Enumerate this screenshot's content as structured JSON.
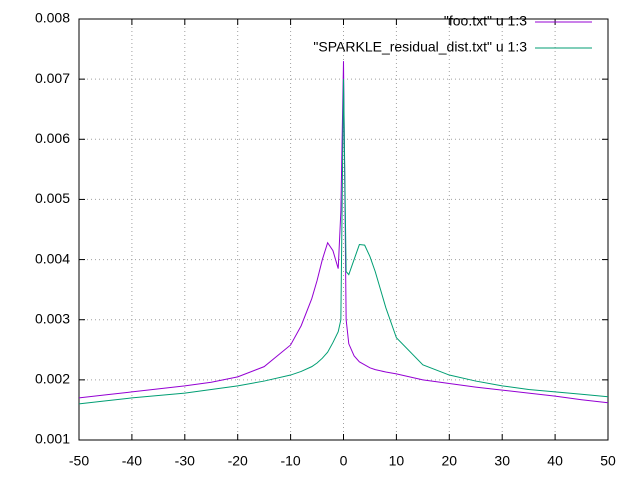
{
  "chart_data": {
    "type": "line",
    "x": [
      -50,
      -45,
      -40,
      -35,
      -30,
      -25,
      -20,
      -15,
      -10,
      -8,
      -6,
      -5,
      -4,
      -3,
      -2,
      -1,
      -0.5,
      0,
      0.5,
      1,
      2,
      3,
      4,
      5,
      6,
      8,
      10,
      15,
      20,
      25,
      30,
      35,
      40,
      45,
      50
    ],
    "series": [
      {
        "name": "\"foo.txt\" u 1:3",
        "color": "#9400d3",
        "values": [
          0.0017,
          0.00175,
          0.0018,
          0.00185,
          0.0019,
          0.00196,
          0.00205,
          0.00222,
          0.00258,
          0.0029,
          0.00335,
          0.00365,
          0.004,
          0.00428,
          0.00415,
          0.00385,
          0.0048,
          0.0073,
          0.003,
          0.0026,
          0.0024,
          0.0023,
          0.00225,
          0.0022,
          0.00217,
          0.00213,
          0.0021,
          0.002,
          0.00194,
          0.00188,
          0.00183,
          0.00178,
          0.00173,
          0.00167,
          0.00162
        ]
      },
      {
        "name": "\"SPARKLE_residual_dist.txt\" u 1:3",
        "color": "#009e73",
        "values": [
          0.0016,
          0.00165,
          0.0017,
          0.00174,
          0.00178,
          0.00184,
          0.0019,
          0.00198,
          0.00208,
          0.00214,
          0.00222,
          0.00228,
          0.00236,
          0.00246,
          0.00262,
          0.0028,
          0.003,
          0.007,
          0.0038,
          0.00375,
          0.004,
          0.00425,
          0.00424,
          0.00405,
          0.0038,
          0.0032,
          0.0027,
          0.00225,
          0.00208,
          0.00198,
          0.0019,
          0.00184,
          0.0018,
          0.00176,
          0.00172
        ]
      }
    ],
    "xlim": [
      -50,
      50
    ],
    "ylim": [
      0.001,
      0.008
    ],
    "xticks": [
      -50,
      -40,
      -30,
      -20,
      -10,
      0,
      10,
      20,
      30,
      40,
      50
    ],
    "yticks": [
      0.001,
      0.002,
      0.003,
      0.004,
      0.005,
      0.006,
      0.007,
      0.008
    ],
    "grid": true,
    "legend": "top-right"
  }
}
